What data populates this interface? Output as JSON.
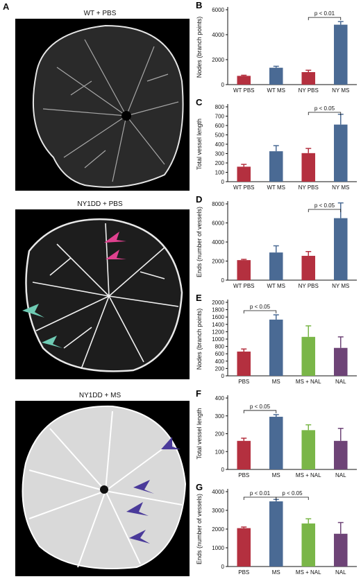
{
  "panelA": {
    "letter": "A",
    "images": [
      {
        "title": "WT + PBS"
      },
      {
        "title": "NY1DD + PBS"
      },
      {
        "title": "NY1DD + MS"
      }
    ]
  },
  "colors": {
    "red": "#b4303f",
    "blue": "#4a6a94",
    "green": "#7ab648",
    "purple": "#6e4477",
    "arrow_pink": "#e0418f",
    "arrow_teal": "#6fcbb4",
    "arrow_purple": "#4a3a9a"
  },
  "chart_data": [
    {
      "letter": "B",
      "type": "bar",
      "categories": [
        "WT PBS",
        "WT MS",
        "NY PBS",
        "NY MS"
      ],
      "values": [
        700,
        1350,
        1000,
        4800
      ],
      "errors": [
        50,
        120,
        150,
        250
      ],
      "colors": [
        "red",
        "blue",
        "red",
        "blue"
      ],
      "ylabel": "Nodes (branch points)",
      "ylim": [
        0,
        6000
      ],
      "yticks": [
        0,
        2000,
        4000,
        6000
      ],
      "sig": [
        {
          "from": 2,
          "to": 3,
          "label": "p < 0.01"
        }
      ]
    },
    {
      "letter": "C",
      "type": "bar",
      "categories": [
        "WT PBS",
        "WT MS",
        "NY PBS",
        "NY MS"
      ],
      "values": [
        160,
        325,
        305,
        610
      ],
      "errors": [
        25,
        60,
        50,
        110
      ],
      "colors": [
        "red",
        "blue",
        "red",
        "blue"
      ],
      "ylabel": "Total vessel length",
      "ylim": [
        0,
        800
      ],
      "yticks": [
        0,
        100,
        200,
        300,
        400,
        500,
        600,
        700,
        800
      ],
      "sig": [
        {
          "from": 2,
          "to": 3,
          "label": "p < 0.05"
        }
      ]
    },
    {
      "letter": "D",
      "type": "bar",
      "categories": [
        "WT PBS",
        "WT MS",
        "NY PBS",
        "NY MS"
      ],
      "values": [
        2100,
        2900,
        2550,
        6500
      ],
      "errors": [
        80,
        700,
        450,
        1600
      ],
      "colors": [
        "red",
        "blue",
        "red",
        "blue"
      ],
      "ylabel": "Ends (number of vessels)",
      "ylim": [
        0,
        8000
      ],
      "yticks": [
        0,
        2000,
        4000,
        6000,
        8000
      ],
      "sig": [
        {
          "from": 2,
          "to": 3,
          "label": "p < 0.05"
        }
      ]
    },
    {
      "letter": "E",
      "type": "bar",
      "categories": [
        "PBS",
        "MS",
        "MS + NAL",
        "NAL"
      ],
      "values": [
        660,
        1530,
        1060,
        760
      ],
      "errors": [
        70,
        130,
        300,
        300
      ],
      "colors": [
        "red",
        "blue",
        "green",
        "purple"
      ],
      "ylabel": "Nodes (branch points)",
      "ylim": [
        0,
        2000
      ],
      "yticks": [
        0,
        200,
        400,
        600,
        800,
        1000,
        1200,
        1400,
        1600,
        1800,
        2000
      ],
      "sig": [
        {
          "from": 0,
          "to": 1,
          "label": "p < 0.05"
        }
      ]
    },
    {
      "letter": "F",
      "type": "bar",
      "categories": [
        "PBS",
        "MS",
        "MS + NAL",
        "NAL"
      ],
      "values": [
        160,
        295,
        220,
        160
      ],
      "errors": [
        15,
        12,
        30,
        70
      ],
      "colors": [
        "red",
        "blue",
        "green",
        "purple"
      ],
      "ylabel": "Total vessel length",
      "ylim": [
        0,
        400
      ],
      "yticks": [
        0,
        100,
        200,
        300,
        400
      ],
      "sig": [
        {
          "from": 0,
          "to": 1,
          "label": "p < 0.05"
        }
      ]
    },
    {
      "letter": "G",
      "type": "bar",
      "categories": [
        "PBS",
        "MS",
        "MS + NAL",
        "NAL"
      ],
      "values": [
        2050,
        3480,
        2300,
        1750
      ],
      "errors": [
        60,
        100,
        250,
        600
      ],
      "colors": [
        "red",
        "blue",
        "green",
        "purple"
      ],
      "ylabel": "Ends (number of vessels)",
      "ylim": [
        0,
        4000
      ],
      "yticks": [
        0,
        1000,
        2000,
        3000,
        4000
      ],
      "sig": [
        {
          "from": 0,
          "to": 1,
          "label": "p < 0.01"
        },
        {
          "from": 1,
          "to": 2,
          "label": "p < 0.05"
        }
      ]
    }
  ]
}
